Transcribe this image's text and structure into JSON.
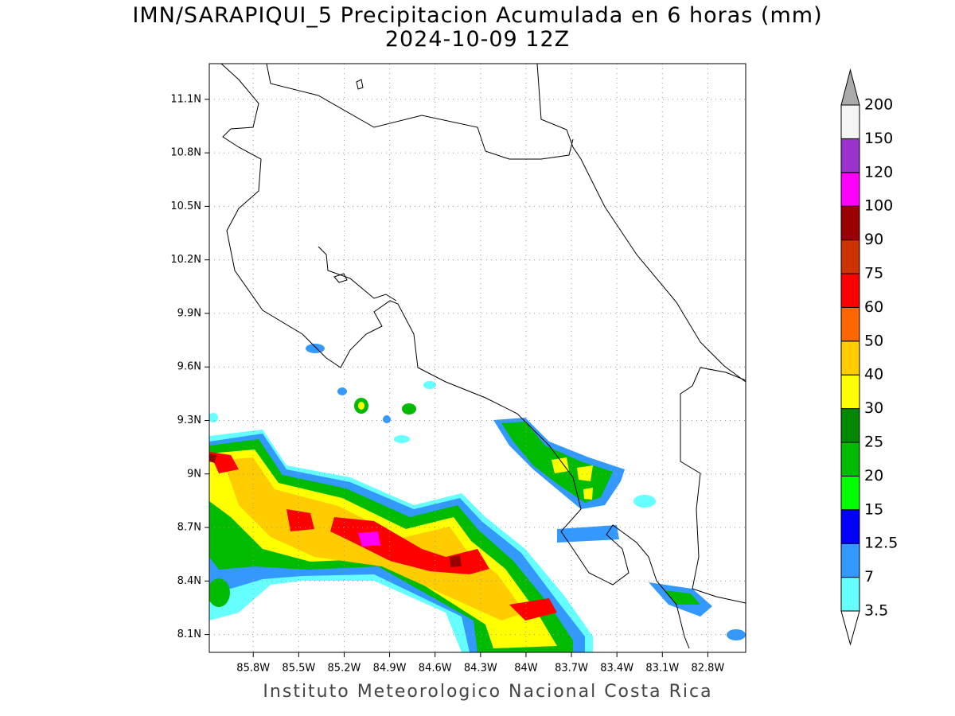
{
  "map": {
    "title": "IMN/SARAPIQUI_5 Precipitacion Acumulada en 6 horas (mm)",
    "subtitle": "2024-10-09 12Z",
    "xlim": [
      -86.09,
      -82.55
    ],
    "ylim": [
      8.0,
      11.3
    ],
    "xticks": [
      {
        "value": -85.8,
        "label": "85.8W"
      },
      {
        "value": -85.5,
        "label": "85.5W"
      },
      {
        "value": -85.2,
        "label": "85.2W"
      },
      {
        "value": -84.9,
        "label": "84.9W"
      },
      {
        "value": -84.6,
        "label": "84.6W"
      },
      {
        "value": -84.3,
        "label": "84.3W"
      },
      {
        "value": -84.0,
        "label": "84W"
      },
      {
        "value": -83.7,
        "label": "83.7W"
      },
      {
        "value": -83.4,
        "label": "83.4W"
      },
      {
        "value": -83.1,
        "label": "83.1W"
      },
      {
        "value": -82.8,
        "label": "82.8W"
      }
    ],
    "yticks": [
      {
        "value": 8.1,
        "label": "8.1N"
      },
      {
        "value": 8.4,
        "label": "8.4N"
      },
      {
        "value": 8.7,
        "label": "8.7N"
      },
      {
        "value": 9.0,
        "label": "9N"
      },
      {
        "value": 9.3,
        "label": "9.3N"
      },
      {
        "value": 9.6,
        "label": "9.6N"
      },
      {
        "value": 9.9,
        "label": "9.9N"
      },
      {
        "value": 10.2,
        "label": "10.2N"
      },
      {
        "value": 10.5,
        "label": "10.5N"
      },
      {
        "value": 10.8,
        "label": "10.8N"
      },
      {
        "value": 11.1,
        "label": "11.1N"
      }
    ],
    "grid": true,
    "colorbar": {
      "levels": [
        3.5,
        7,
        12.5,
        15,
        20,
        25,
        30,
        40,
        50,
        60,
        75,
        90,
        100,
        120,
        150,
        200
      ],
      "colors": [
        "#ffffff",
        "#66ffff",
        "#3399ff",
        "#0000ff",
        "#00ff00",
        "#00bb00",
        "#008800",
        "#ffff00",
        "#ffcc00",
        "#ff6600",
        "#ff0000",
        "#cc3300",
        "#990000",
        "#ff00ff",
        "#9933cc",
        "#f5f5f5",
        "#aaaaaa"
      ]
    },
    "credit": "Instituto Meteorologico Nacional Costa Rica"
  }
}
